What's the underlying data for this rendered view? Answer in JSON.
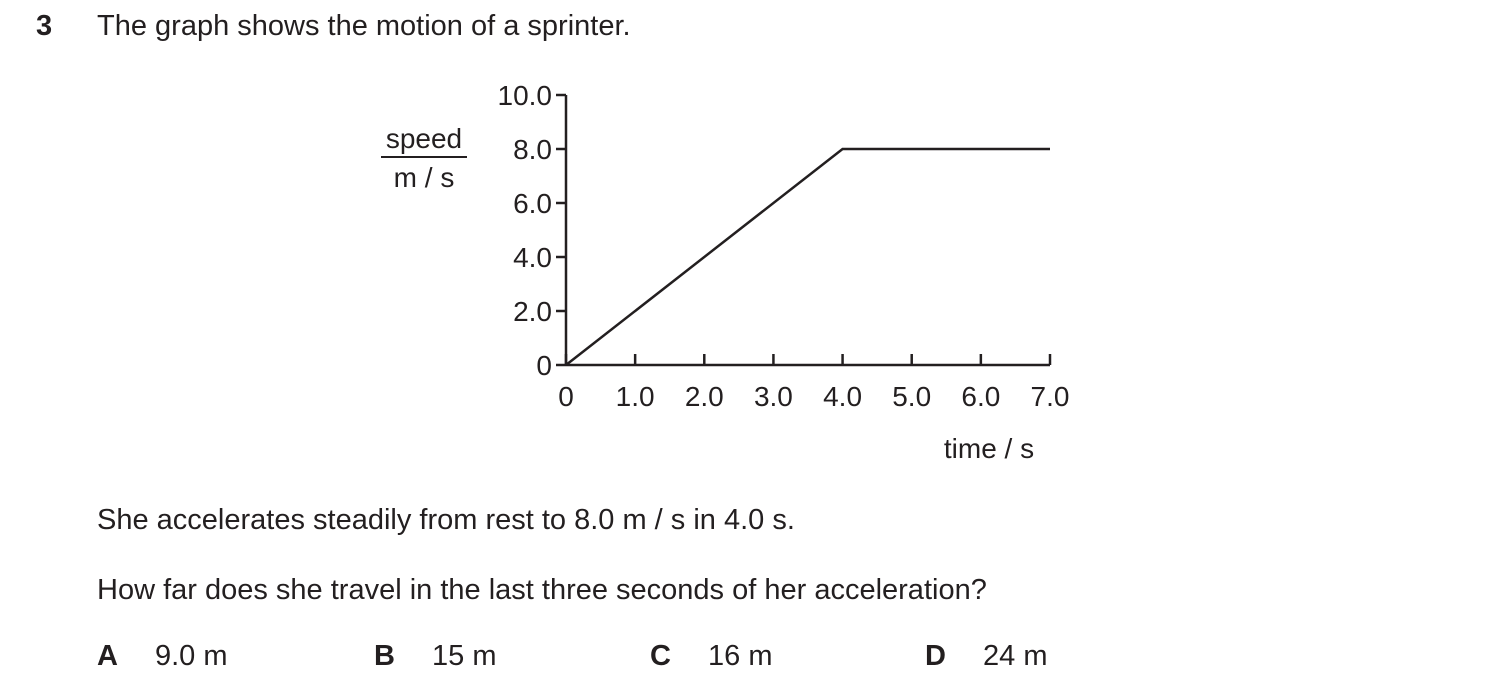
{
  "question": {
    "number": "3",
    "stem": "The graph shows the motion of a sprinter.",
    "statement": "She accelerates steadily from rest to 8.0 m / s in 4.0 s.",
    "prompt": "How far does she travel in the last three seconds of her acceleration?",
    "options": [
      {
        "letter": "A",
        "text": "9.0 m"
      },
      {
        "letter": "B",
        "text": "15 m"
      },
      {
        "letter": "C",
        "text": "16 m"
      },
      {
        "letter": "D",
        "text": "24 m"
      }
    ]
  },
  "chart_data": {
    "type": "line",
    "ylabel_top": "speed",
    "ylabel_bottom": "m / s",
    "xlabel": "time / s",
    "xlim": [
      0,
      7.0
    ],
    "ylim": [
      0,
      10.0
    ],
    "x_ticks": [
      "0",
      "1.0",
      "2.0",
      "3.0",
      "4.0",
      "5.0",
      "6.0",
      "7.0"
    ],
    "y_ticks": [
      "0",
      "2.0",
      "4.0",
      "6.0",
      "8.0",
      "10.0"
    ],
    "grid": false,
    "series": [
      {
        "x": [
          0,
          4.0,
          7.0
        ],
        "y": [
          0,
          8.0,
          8.0
        ]
      }
    ]
  }
}
